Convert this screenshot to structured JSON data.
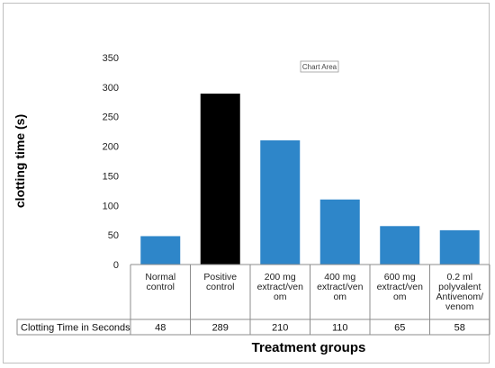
{
  "chart_data": {
    "type": "bar",
    "categories": [
      [
        "Normal",
        "control"
      ],
      [
        "Positive",
        "control"
      ],
      [
        "200 mg",
        "extract/ven",
        "om"
      ],
      [
        "400 mg",
        "extract/ven",
        "om"
      ],
      [
        "600 mg",
        "extract/ven",
        "om"
      ],
      [
        "0.2 ml",
        "polyvalent",
        "Antivenom/",
        "venom"
      ]
    ],
    "series": [
      {
        "name": "Clotting Time in Seconds",
        "values": [
          48,
          289,
          210,
          110,
          65,
          58
        ]
      }
    ],
    "bar_colors": [
      "#2e86c9",
      "#000000",
      "#2e86c9",
      "#2e86c9",
      "#2e86c9",
      "#2e86c9"
    ],
    "xlabel": "Treatment groups",
    "ylabel": "clotting time (s)",
    "ylim": [
      0,
      350
    ],
    "yticks": [
      0,
      50,
      100,
      150,
      200,
      250,
      300,
      350
    ],
    "grid": false,
    "data_table": true,
    "legend": "none",
    "tooltip": "Chart Area"
  }
}
